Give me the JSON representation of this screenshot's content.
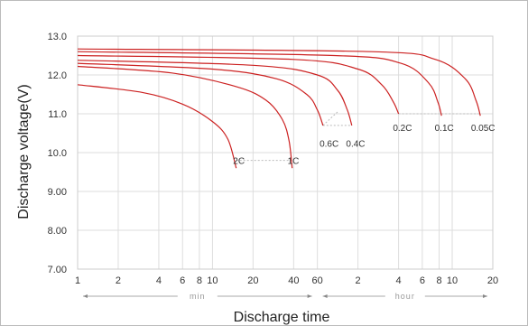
{
  "chart_data": {
    "type": "line",
    "xlabel": "Discharge time",
    "ylabel": "Discharge voltage(V)",
    "x_scale": "log",
    "x_unit": "minutes",
    "xlim": [
      1,
      1200
    ],
    "ylim": [
      7.0,
      13.0
    ],
    "y_ticks": [
      "13.0",
      "12.0",
      "11.0",
      "10.0",
      "9.00",
      "8.00",
      "7.00"
    ],
    "y_tick_values": [
      13,
      12,
      11,
      10,
      9,
      8,
      7
    ],
    "x_ticks": [
      {
        "label": "1",
        "minutes": 1
      },
      {
        "label": "2",
        "minutes": 2
      },
      {
        "label": "4",
        "minutes": 4
      },
      {
        "label": "6",
        "minutes": 6
      },
      {
        "label": "8",
        "minutes": 8
      },
      {
        "label": "10",
        "minutes": 10
      },
      {
        "label": "20",
        "minutes": 20
      },
      {
        "label": "40",
        "minutes": 40
      },
      {
        "label": "60",
        "minutes": 60
      },
      {
        "label": "2",
        "minutes": 120
      },
      {
        "label": "4",
        "minutes": 240
      },
      {
        "label": "6",
        "minutes": 360
      },
      {
        "label": "8",
        "minutes": 480
      },
      {
        "label": "10",
        "minutes": 600
      },
      {
        "label": "20",
        "minutes": 1200
      }
    ],
    "unit_ranges": [
      {
        "label": "min",
        "from": 1,
        "to": 60
      },
      {
        "label": "hour",
        "from": 60,
        "to": 1200
      }
    ],
    "grid": true,
    "line_color": "#cc2222",
    "series": [
      {
        "name": "2C",
        "label_at": [
          15,
          9.8
        ],
        "points": [
          [
            1,
            11.75
          ],
          [
            3,
            11.55
          ],
          [
            6,
            11.25
          ],
          [
            10,
            10.8
          ],
          [
            13,
            10.35
          ],
          [
            15,
            9.6
          ]
        ]
      },
      {
        "name": "1C",
        "label_at": [
          38,
          9.8
        ],
        "points": [
          [
            1,
            12.22
          ],
          [
            5,
            12.05
          ],
          [
            15,
            11.7
          ],
          [
            25,
            11.35
          ],
          [
            33,
            10.85
          ],
          [
            37,
            10.3
          ],
          [
            39,
            9.6
          ]
        ]
      },
      {
        "name": "0.6C",
        "label_at": [
          70,
          10.25
        ],
        "points": [
          [
            1,
            12.3
          ],
          [
            10,
            12.15
          ],
          [
            30,
            11.9
          ],
          [
            50,
            11.5
          ],
          [
            60,
            11.1
          ],
          [
            66,
            10.7
          ]
        ]
      },
      {
        "name": "0.4C",
        "label_at": [
          110,
          10.25
        ],
        "points": [
          [
            1,
            12.38
          ],
          [
            20,
            12.25
          ],
          [
            60,
            12.0
          ],
          [
            85,
            11.6
          ],
          [
            100,
            11.1
          ],
          [
            108,
            10.7
          ]
        ]
      },
      {
        "name": "0.2C",
        "label_at": [
          245,
          10.65
        ],
        "points": [
          [
            1,
            12.5
          ],
          [
            40,
            12.4
          ],
          [
            120,
            12.15
          ],
          [
            180,
            11.75
          ],
          [
            220,
            11.3
          ],
          [
            240,
            11.0
          ]
        ]
      },
      {
        "name": "0.1C",
        "label_at": [
          500,
          10.65
        ],
        "points": [
          [
            1,
            12.6
          ],
          [
            80,
            12.5
          ],
          [
            250,
            12.3
          ],
          [
            400,
            11.8
          ],
          [
            470,
            11.3
          ],
          [
            500,
            10.95
          ]
        ]
      },
      {
        "name": "0.05C",
        "label_at": [
          970,
          10.65
        ],
        "points": [
          [
            1,
            12.67
          ],
          [
            150,
            12.6
          ],
          [
            450,
            12.4
          ],
          [
            750,
            11.9
          ],
          [
            900,
            11.35
          ],
          [
            970,
            10.95
          ]
        ]
      }
    ],
    "connectors": [
      {
        "points": [
          [
            15,
            9.8
          ],
          [
            39,
            9.8
          ]
        ]
      },
      {
        "points": [
          [
            66,
            10.7
          ],
          [
            108,
            10.7
          ]
        ]
      },
      {
        "points": [
          [
            66,
            10.7
          ],
          [
            85,
            11.05
          ]
        ]
      },
      {
        "points": [
          [
            240,
            11.0
          ],
          [
            500,
            11.0
          ]
        ]
      },
      {
        "points": [
          [
            500,
            11.0
          ],
          [
            970,
            11.0
          ]
        ]
      }
    ]
  }
}
